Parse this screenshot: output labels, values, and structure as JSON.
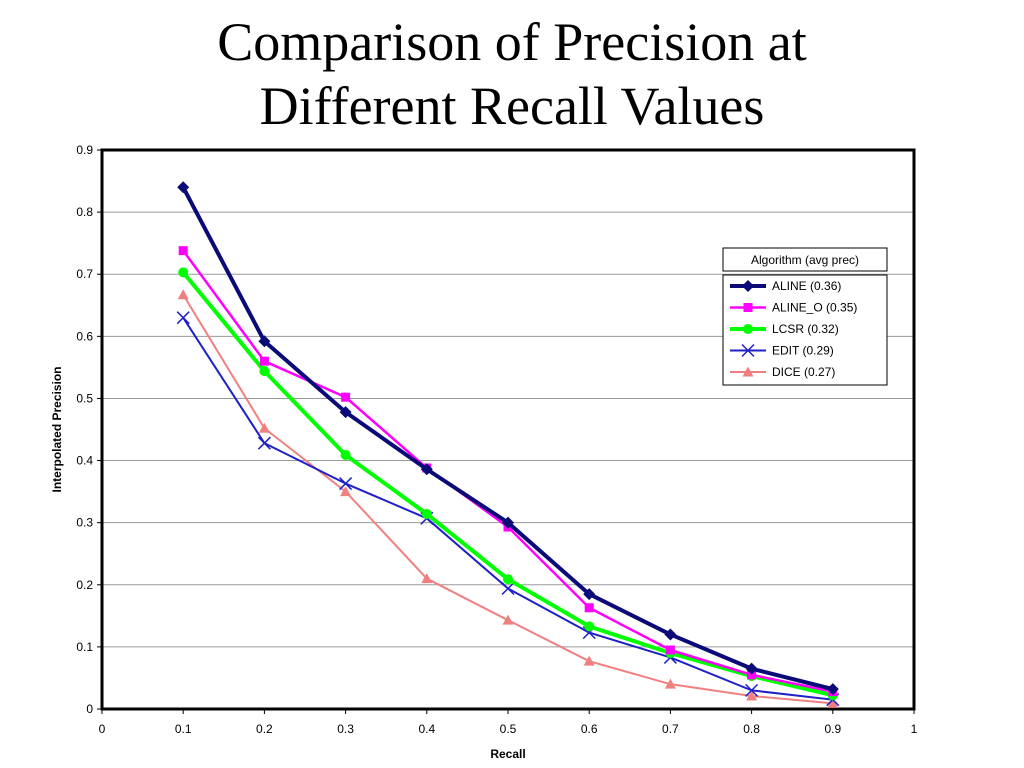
{
  "chart_data": {
    "type": "line",
    "title_lines": [
      "Comparison of Precision at",
      "Different Recall Values"
    ],
    "xlabel": "Recall",
    "ylabel": "Interpolated Precision",
    "xlim": [
      0,
      1
    ],
    "ylim": [
      0,
      0.9
    ],
    "x_ticks": [
      "0",
      "0.1",
      "0.2",
      "0.3",
      "0.4",
      "0.5",
      "0.6",
      "0.7",
      "0.8",
      "0.9",
      "1"
    ],
    "y_ticks": [
      "0",
      "0.1",
      "0.2",
      "0.3",
      "0.4",
      "0.5",
      "0.6",
      "0.7",
      "0.8",
      "0.9"
    ],
    "grid": "horizontal",
    "legend_title": "Algorithm (avg prec)",
    "legend_position": "top-right",
    "x": [
      0.1,
      0.2,
      0.3,
      0.4,
      0.5,
      0.6,
      0.7,
      0.8,
      0.9
    ],
    "series": [
      {
        "name": "ALINE (0.36)",
        "color": "#0a0a78",
        "marker": "diamond",
        "values": [
          0.84,
          0.592,
          0.478,
          0.386,
          0.3,
          0.185,
          0.12,
          0.065,
          0.032
        ]
      },
      {
        "name": "ALINE_O (0.35)",
        "color": "#ff00ff",
        "marker": "square",
        "values": [
          0.738,
          0.56,
          0.502,
          0.388,
          0.293,
          0.163,
          0.095,
          0.055,
          0.028
        ]
      },
      {
        "name": "LCSR (0.32)",
        "color": "#00ff00",
        "marker": "circle",
        "values": [
          0.703,
          0.544,
          0.409,
          0.314,
          0.209,
          0.133,
          0.09,
          0.053,
          0.022
        ]
      },
      {
        "name": "EDIT (0.29)",
        "color": "#1f1fc8",
        "marker": "x",
        "values": [
          0.63,
          0.428,
          0.363,
          0.307,
          0.194,
          0.123,
          0.083,
          0.03,
          0.015
        ]
      },
      {
        "name": "DICE (0.27)",
        "color": "#f08080",
        "marker": "triangle",
        "values": [
          0.667,
          0.452,
          0.35,
          0.21,
          0.143,
          0.077,
          0.04,
          0.021,
          0.009
        ]
      }
    ]
  }
}
